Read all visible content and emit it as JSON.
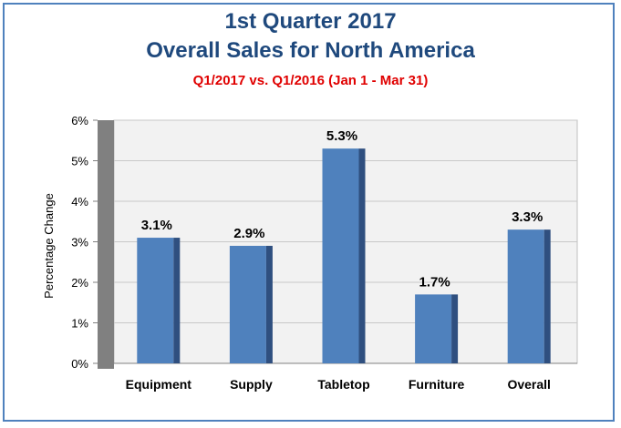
{
  "chart_data": {
    "type": "bar",
    "title": "1st Quarter 2017",
    "title_line2": "Overall Sales for North America",
    "subtitle": "Q1/2017 vs. Q1/2016 (Jan 1 - Mar 31)",
    "xlabel": "",
    "ylabel": "Percentage Change",
    "categories": [
      "Equipment",
      "Supply",
      "Tabletop",
      "Furniture",
      "Overall"
    ],
    "values": [
      3.1,
      2.9,
      5.3,
      1.7,
      3.3
    ],
    "value_labels": [
      "3.1%",
      "2.9%",
      "5.3%",
      "1.7%",
      "3.3%"
    ],
    "ylim": [
      0,
      6
    ],
    "yticks": [
      "0%",
      "1%",
      "2%",
      "3%",
      "4%",
      "5%",
      "6%"
    ],
    "grid": true,
    "legend": "none"
  },
  "colors": {
    "bar_front": "#4f81bd",
    "bar_side": "#2f4f7f",
    "frame": "#4f81bd",
    "title": "#1f497d",
    "subtitle": "#e00000",
    "wall": "#808080",
    "plot_bg": "#f2f2f2"
  }
}
